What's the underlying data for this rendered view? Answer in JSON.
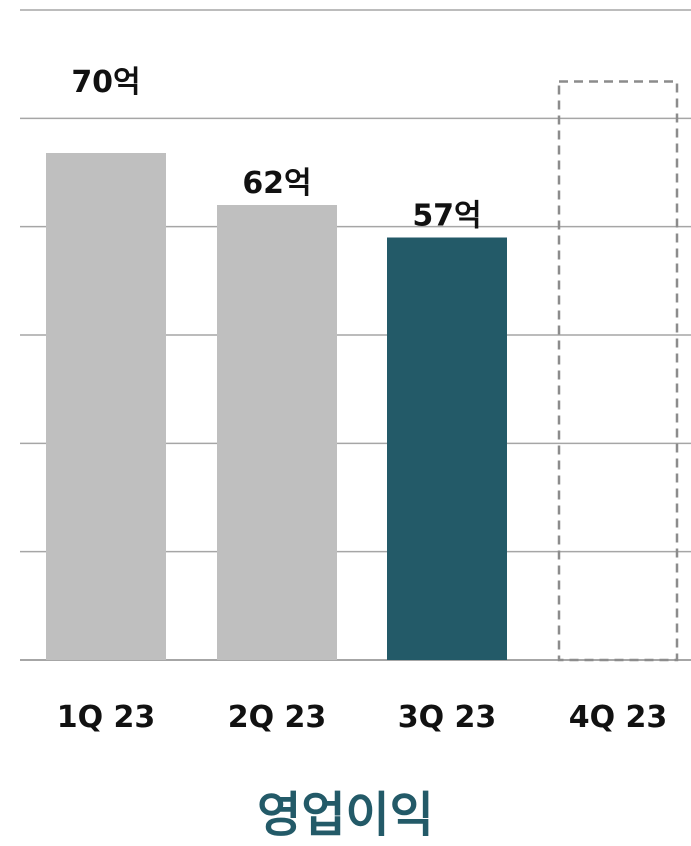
{
  "chart_data": {
    "type": "bar",
    "title": "영업이익",
    "categories": [
      "1Q 23",
      "2Q 23",
      "3Q 23",
      "4Q 23"
    ],
    "values": [
      70,
      62,
      57,
      null
    ],
    "value_labels": [
      "70억",
      "62억",
      "57억",
      ""
    ],
    "forecast_placeholder": "4Q 23",
    "ylim": [
      0,
      100
    ],
    "grid": true,
    "colors": {
      "past": "#bfbfbf",
      "current": "#235a68",
      "placeholder_outline": "#8c8c8c",
      "grid": "#a6a6a6",
      "title": "#235a68"
    }
  }
}
